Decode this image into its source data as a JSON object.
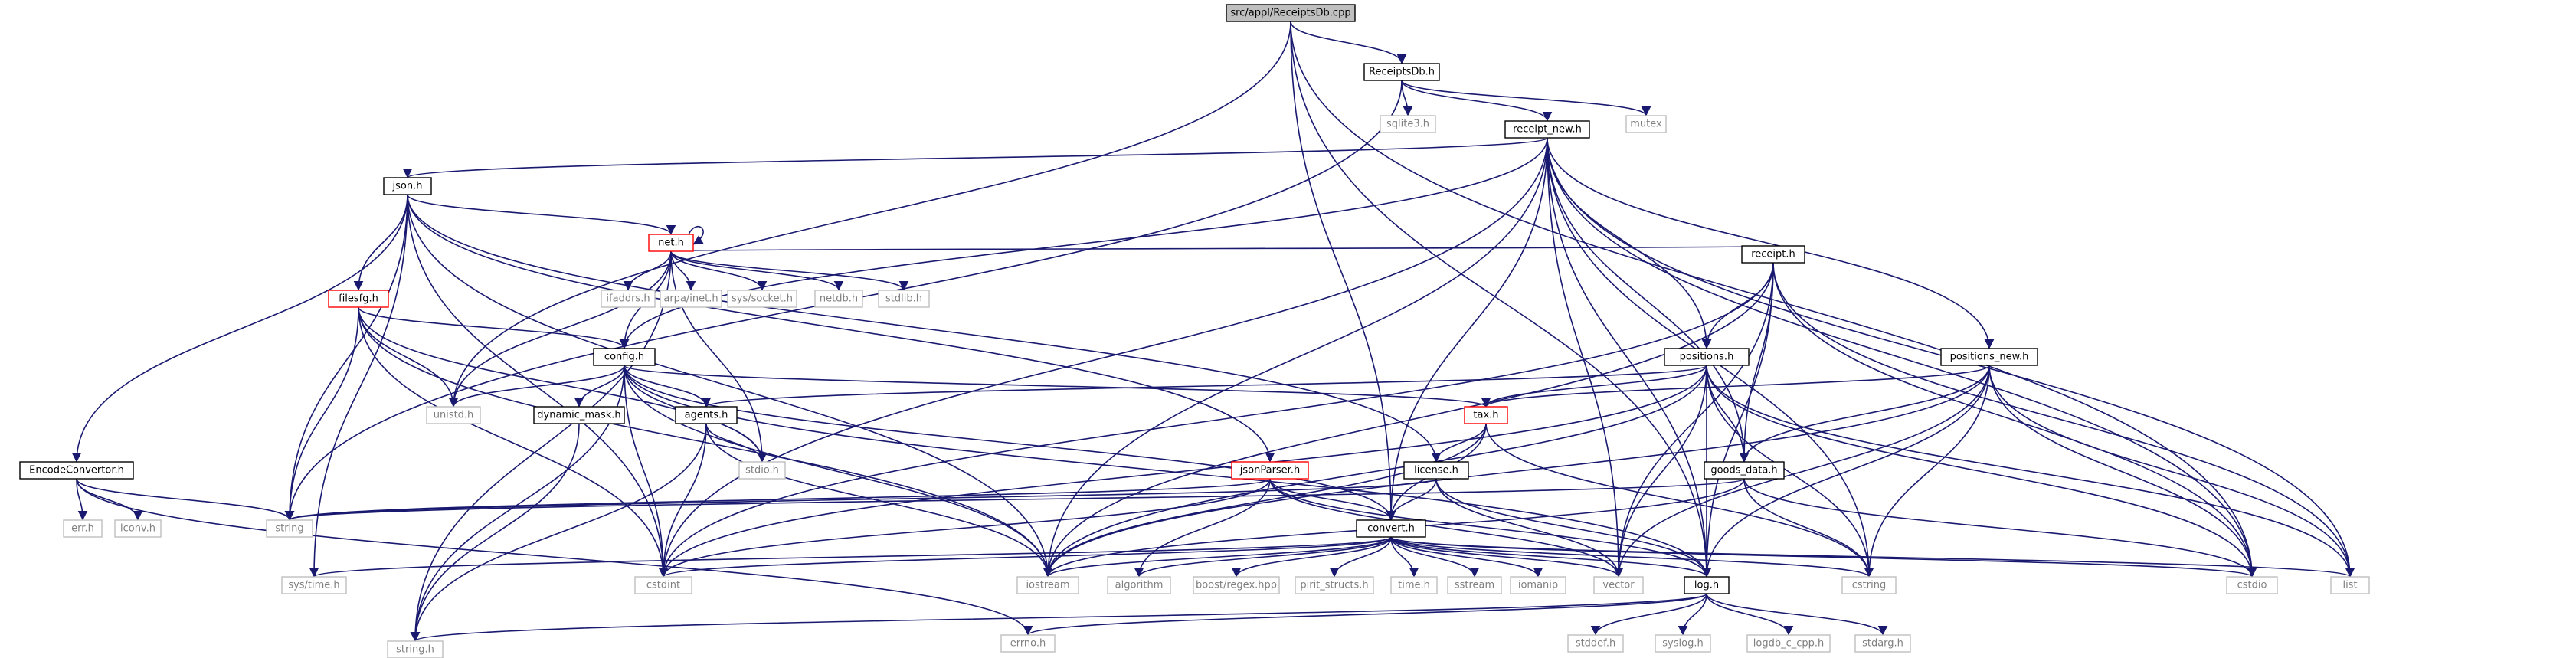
{
  "colors": {
    "edge": "#191970",
    "root_fill": "#bfbfbf",
    "documented_border": "#000000",
    "truncated_border": "#ff0000",
    "external_border": "#bfbfbf",
    "external_text": "#7f7f7f"
  },
  "nodes": [
    {
      "id": "ReceiptsDb_cpp",
      "label": "src/appl/ReceiptsDb.cpp",
      "kind": "root"
    },
    {
      "id": "ReceiptsDb_h",
      "label": "ReceiptsDb.h",
      "kind": "doc"
    },
    {
      "id": "sqlite3_h",
      "label": "sqlite3.h",
      "kind": "ext"
    },
    {
      "id": "mutex",
      "label": "mutex",
      "kind": "ext"
    },
    {
      "id": "receipt_new_h",
      "label": "receipt_new.h",
      "kind": "doc"
    },
    {
      "id": "json_h",
      "label": "json.h",
      "kind": "doc"
    },
    {
      "id": "net_h",
      "label": "net.h",
      "kind": "trunc"
    },
    {
      "id": "filesfg_h",
      "label": "filesfg.h",
      "kind": "trunc"
    },
    {
      "id": "ifaddrs_h",
      "label": "ifaddrs.h",
      "kind": "ext"
    },
    {
      "id": "arpa_inet_h",
      "label": "arpa/inet.h",
      "kind": "ext"
    },
    {
      "id": "sys_socket_h",
      "label": "sys/socket.h",
      "kind": "ext"
    },
    {
      "id": "netdb_h",
      "label": "netdb.h",
      "kind": "ext"
    },
    {
      "id": "stdlib_h",
      "label": "stdlib.h",
      "kind": "ext"
    },
    {
      "id": "receipt_h",
      "label": "receipt.h",
      "kind": "doc"
    },
    {
      "id": "config_h",
      "label": "config.h",
      "kind": "doc"
    },
    {
      "id": "positions_h",
      "label": "positions.h",
      "kind": "doc"
    },
    {
      "id": "positions_new_h",
      "label": "positions_new.h",
      "kind": "doc"
    },
    {
      "id": "unistd_h",
      "label": "unistd.h",
      "kind": "ext"
    },
    {
      "id": "dynamic_mask_h",
      "label": "dynamic_mask.h",
      "kind": "doc"
    },
    {
      "id": "agents_h",
      "label": "agents.h",
      "kind": "doc"
    },
    {
      "id": "stdio_h",
      "label": "stdio.h",
      "kind": "ext"
    },
    {
      "id": "tax_h",
      "label": "tax.h",
      "kind": "trunc"
    },
    {
      "id": "license_h",
      "label": "license.h",
      "kind": "doc"
    },
    {
      "id": "jsonParser_h",
      "label": "jsonParser.h",
      "kind": "trunc"
    },
    {
      "id": "goods_data_h",
      "label": "goods_data.h",
      "kind": "doc"
    },
    {
      "id": "EncodeConvertor_h",
      "label": "EncodeConvertor.h",
      "kind": "doc"
    },
    {
      "id": "err_h",
      "label": "err.h",
      "kind": "ext"
    },
    {
      "id": "iconv_h",
      "label": "iconv.h",
      "kind": "ext"
    },
    {
      "id": "string",
      "label": "string",
      "kind": "ext"
    },
    {
      "id": "convert_h",
      "label": "convert.h",
      "kind": "doc"
    },
    {
      "id": "sys_time_h",
      "label": "sys/time.h",
      "kind": "ext"
    },
    {
      "id": "cstdint",
      "label": "cstdint",
      "kind": "ext"
    },
    {
      "id": "iostream",
      "label": "iostream",
      "kind": "ext"
    },
    {
      "id": "algorithm",
      "label": "algorithm",
      "kind": "ext"
    },
    {
      "id": "boost_regex_hpp",
      "label": "boost/regex.hpp",
      "kind": "ext"
    },
    {
      "id": "pirit_structs_h",
      "label": "pirit_structs.h",
      "kind": "ext"
    },
    {
      "id": "time_h",
      "label": "time.h",
      "kind": "ext"
    },
    {
      "id": "sstream",
      "label": "sstream",
      "kind": "ext"
    },
    {
      "id": "iomanip",
      "label": "iomanip",
      "kind": "ext"
    },
    {
      "id": "vector",
      "label": "vector",
      "kind": "ext"
    },
    {
      "id": "log_h",
      "label": "log.h",
      "kind": "doc"
    },
    {
      "id": "cstring",
      "label": "cstring",
      "kind": "ext"
    },
    {
      "id": "cstdio",
      "label": "cstdio",
      "kind": "ext"
    },
    {
      "id": "list",
      "label": "list",
      "kind": "ext"
    },
    {
      "id": "string_h",
      "label": "string.h",
      "kind": "ext"
    },
    {
      "id": "errno_h",
      "label": "errno.h",
      "kind": "ext"
    },
    {
      "id": "stddef_h",
      "label": "stddef.h",
      "kind": "ext"
    },
    {
      "id": "syslog_h",
      "label": "syslog.h",
      "kind": "ext"
    },
    {
      "id": "logdb_c_cpp_h",
      "label": "logdb_c_cpp.h",
      "kind": "ext"
    },
    {
      "id": "stdarg_h",
      "label": "stdarg.h",
      "kind": "ext"
    }
  ],
  "edges": [
    [
      "ReceiptsDb_cpp",
      "ReceiptsDb_h"
    ],
    [
      "ReceiptsDb_cpp",
      "unistd_h"
    ],
    [
      "ReceiptsDb_cpp",
      "convert_h"
    ],
    [
      "ReceiptsDb_cpp",
      "log_h"
    ],
    [
      "ReceiptsDb_cpp",
      "cstdio"
    ],
    [
      "ReceiptsDb_h",
      "sqlite3_h"
    ],
    [
      "ReceiptsDb_h",
      "mutex"
    ],
    [
      "ReceiptsDb_h",
      "receipt_new_h"
    ],
    [
      "ReceiptsDb_h",
      "string"
    ],
    [
      "receipt_new_h",
      "json_h"
    ],
    [
      "receipt_new_h",
      "config_h"
    ],
    [
      "receipt_new_h",
      "positions_h"
    ],
    [
      "receipt_new_h",
      "positions_new_h"
    ],
    [
      "receipt_new_h",
      "goods_data_h"
    ],
    [
      "receipt_new_h",
      "convert_h"
    ],
    [
      "receipt_new_h",
      "iostream"
    ],
    [
      "receipt_new_h",
      "vector"
    ],
    [
      "receipt_new_h",
      "cstdint"
    ],
    [
      "receipt_new_h",
      "list"
    ],
    [
      "receipt_new_h",
      "cstring"
    ],
    [
      "receipt_new_h",
      "log_h"
    ],
    [
      "receipt_new_h",
      "cstdio"
    ],
    [
      "json_h",
      "net_h"
    ],
    [
      "json_h",
      "filesfg_h"
    ],
    [
      "json_h",
      "EncodeConvertor_h"
    ],
    [
      "json_h",
      "string"
    ],
    [
      "json_h",
      "cstdint"
    ],
    [
      "json_h",
      "iostream"
    ],
    [
      "json_h",
      "license_h"
    ],
    [
      "json_h",
      "jsonParser_h"
    ],
    [
      "json_h",
      "sys_time_h"
    ],
    [
      "net_h",
      "net_h"
    ],
    [
      "net_h",
      "ifaddrs_h"
    ],
    [
      "net_h",
      "arpa_inet_h"
    ],
    [
      "net_h",
      "sys_socket_h"
    ],
    [
      "net_h",
      "netdb_h"
    ],
    [
      "net_h",
      "stdlib_h"
    ],
    [
      "net_h",
      "receipt_h"
    ],
    [
      "net_h",
      "config_h"
    ],
    [
      "net_h",
      "unistd_h"
    ],
    [
      "net_h",
      "stdio_h"
    ],
    [
      "net_h",
      "string_h"
    ],
    [
      "filesfg_h",
      "config_h"
    ],
    [
      "filesfg_h",
      "unistd_h"
    ],
    [
      "filesfg_h",
      "string"
    ],
    [
      "filesfg_h",
      "cstdint"
    ],
    [
      "filesfg_h",
      "stdio_h"
    ],
    [
      "filesfg_h",
      "iostream"
    ],
    [
      "receipt_h",
      "positions_h"
    ],
    [
      "receipt_h",
      "goods_data_h"
    ],
    [
      "receipt_h",
      "vector"
    ],
    [
      "receipt_h",
      "log_h"
    ],
    [
      "receipt_h",
      "list"
    ],
    [
      "receipt_h",
      "cstdio"
    ],
    [
      "receipt_h",
      "iostream"
    ],
    [
      "receipt_h",
      "cstdint"
    ],
    [
      "config_h",
      "unistd_h"
    ],
    [
      "config_h",
      "dynamic_mask_h"
    ],
    [
      "config_h",
      "agents_h"
    ],
    [
      "config_h",
      "stdio_h"
    ],
    [
      "config_h",
      "tax_h"
    ],
    [
      "config_h",
      "convert_h"
    ],
    [
      "config_h",
      "cstdint"
    ],
    [
      "config_h",
      "iostream"
    ],
    [
      "config_h",
      "string_h"
    ],
    [
      "config_h",
      "log_h"
    ],
    [
      "positions_h",
      "agents_h"
    ],
    [
      "positions_h",
      "tax_h"
    ],
    [
      "positions_h",
      "goods_data_h"
    ],
    [
      "positions_h",
      "iostream"
    ],
    [
      "positions_h",
      "cstdint"
    ],
    [
      "positions_h",
      "vector"
    ],
    [
      "positions_h",
      "log_h"
    ],
    [
      "positions_h",
      "cstring"
    ],
    [
      "positions_h",
      "list"
    ],
    [
      "positions_h",
      "cstdio"
    ],
    [
      "positions_new_h",
      "tax_h"
    ],
    [
      "positions_new_h",
      "goods_data_h"
    ],
    [
      "positions_new_h",
      "iostream"
    ],
    [
      "positions_new_h",
      "vector"
    ],
    [
      "positions_new_h",
      "log_h"
    ],
    [
      "positions_new_h",
      "cstring"
    ],
    [
      "positions_new_h",
      "list"
    ],
    [
      "positions_new_h",
      "cstdio"
    ],
    [
      "dynamic_mask_h",
      "string_h"
    ],
    [
      "agents_h",
      "stdio_h"
    ],
    [
      "agents_h",
      "cstdint"
    ],
    [
      "agents_h",
      "iostream"
    ],
    [
      "agents_h",
      "string_h"
    ],
    [
      "tax_h",
      "license_h"
    ],
    [
      "tax_h",
      "convert_h"
    ],
    [
      "tax_h",
      "iostream"
    ],
    [
      "tax_h",
      "cstring"
    ],
    [
      "license_h",
      "string"
    ],
    [
      "license_h",
      "convert_h"
    ],
    [
      "license_h",
      "log_h"
    ],
    [
      "license_h",
      "vector"
    ],
    [
      "jsonParser_h",
      "string"
    ],
    [
      "jsonParser_h",
      "convert_h"
    ],
    [
      "jsonParser_h",
      "algorithm"
    ],
    [
      "jsonParser_h",
      "cstdint"
    ],
    [
      "jsonParser_h",
      "vector"
    ],
    [
      "jsonParser_h",
      "log_h"
    ],
    [
      "goods_data_h",
      "string"
    ],
    [
      "goods_data_h",
      "iostream"
    ],
    [
      "goods_data_h",
      "cstring"
    ],
    [
      "goods_data_h",
      "cstdio"
    ],
    [
      "EncodeConvertor_h",
      "err_h"
    ],
    [
      "EncodeConvertor_h",
      "iconv_h"
    ],
    [
      "EncodeConvertor_h",
      "string"
    ],
    [
      "EncodeConvertor_h",
      "errno_h"
    ],
    [
      "convert_h",
      "sys_time_h"
    ],
    [
      "convert_h",
      "cstdint"
    ],
    [
      "convert_h",
      "iostream"
    ],
    [
      "convert_h",
      "algorithm"
    ],
    [
      "convert_h",
      "boost_regex_hpp"
    ],
    [
      "convert_h",
      "pirit_structs_h"
    ],
    [
      "convert_h",
      "time_h"
    ],
    [
      "convert_h",
      "sstream"
    ],
    [
      "convert_h",
      "iomanip"
    ],
    [
      "convert_h",
      "vector"
    ],
    [
      "convert_h",
      "log_h"
    ],
    [
      "convert_h",
      "cstring"
    ],
    [
      "convert_h",
      "cstdio"
    ],
    [
      "convert_h",
      "list"
    ],
    [
      "log_h",
      "string_h"
    ],
    [
      "log_h",
      "errno_h"
    ],
    [
      "log_h",
      "stddef_h"
    ],
    [
      "log_h",
      "syslog_h"
    ],
    [
      "log_h",
      "logdb_c_cpp_h"
    ],
    [
      "log_h",
      "stdarg_h"
    ]
  ]
}
